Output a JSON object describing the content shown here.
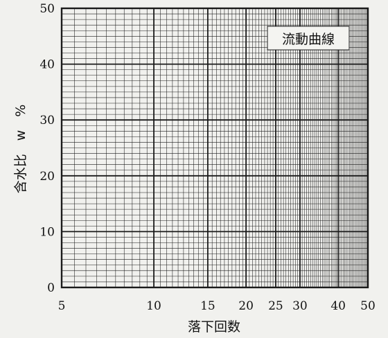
{
  "chart_data": {
    "type": "line",
    "title": "",
    "xlabel": "落下回数",
    "ylabel": "含水比　w　%",
    "x_scale": "log",
    "xlim": [
      5,
      50
    ],
    "ylim": [
      0,
      50
    ],
    "x_ticks": [
      5,
      10,
      15,
      20,
      25,
      30,
      40,
      50
    ],
    "y_ticks": [
      0,
      10,
      20,
      30,
      40,
      50
    ],
    "x_minor_step": 0.5,
    "y_minor_step": 1,
    "grid": true,
    "series": [],
    "annotation": "流動曲線",
    "annotation_position": "top-right"
  },
  "colors": {
    "background": "#f1f1ee",
    "grid": "#1a1a1a",
    "text": "#111111"
  }
}
